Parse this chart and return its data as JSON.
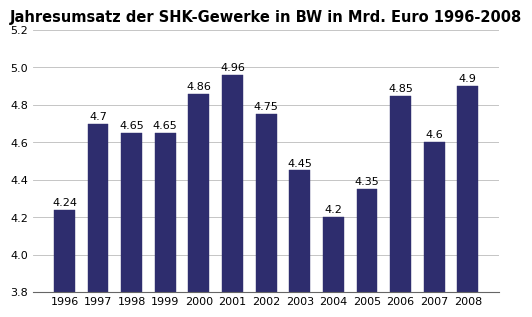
{
  "title": "Jahresumsatz der SHK-Gewerke in BW in Mrd. Euro 1996-2008",
  "years": [
    1996,
    1997,
    1998,
    1999,
    2000,
    2001,
    2002,
    2003,
    2004,
    2005,
    2006,
    2007,
    2008
  ],
  "values": [
    4.24,
    4.7,
    4.65,
    4.65,
    4.86,
    4.96,
    4.75,
    4.45,
    4.2,
    4.35,
    4.85,
    4.6,
    4.9
  ],
  "bar_color": "#2e2d6e",
  "bar_edge_color": "#2e2d6e",
  "ylim_min": 3.8,
  "ylim_max": 5.2,
  "yticks": [
    3.8,
    4.0,
    4.2,
    4.4,
    4.6,
    4.8,
    5.0,
    5.2
  ],
  "title_fontsize": 10.5,
  "label_fontsize": 8,
  "tick_fontsize": 8,
  "background_color": "#ffffff",
  "grid_color": "#bbbbbb"
}
